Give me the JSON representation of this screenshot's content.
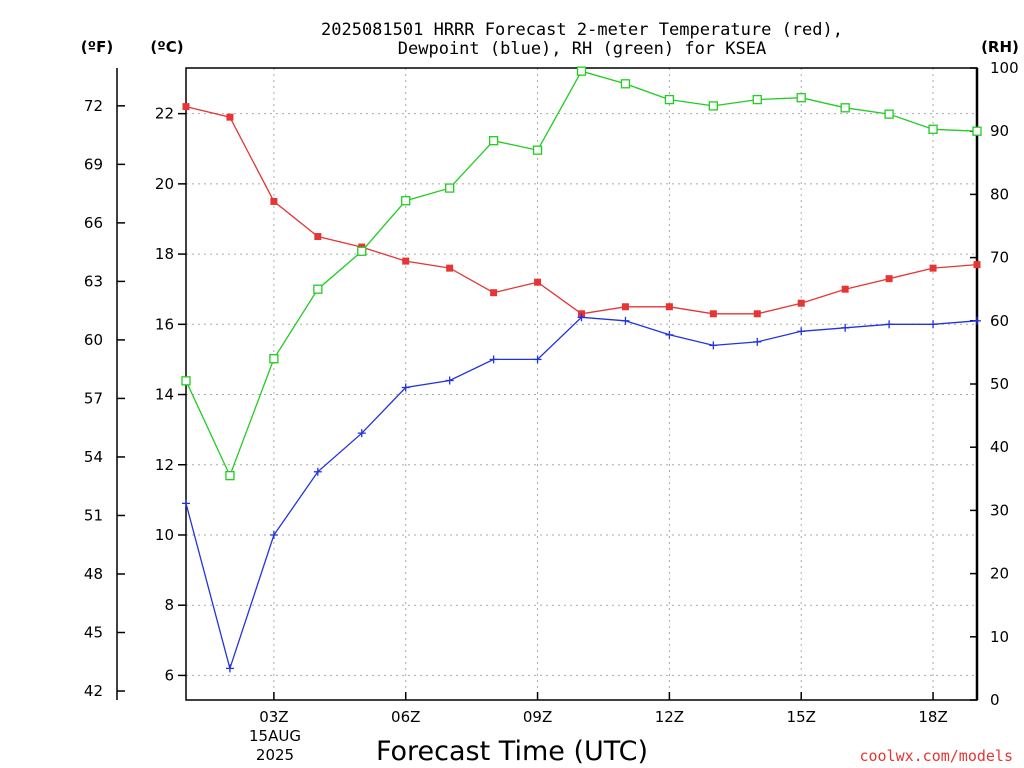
{
  "title_lines": [
    "2025081501 HRRR Forecast 2-meter Temperature (red),",
    "Dewpoint (blue), RH (green) for KSEA"
  ],
  "units": {
    "f": "(ºF)",
    "c": "(ºC)",
    "rh": "(RH)"
  },
  "date_label": {
    "day": "15AUG",
    "year": "2025"
  },
  "credit": "coolwx.com/models",
  "colors": {
    "temperature": "#e53535",
    "dewpoint": "#2233dd",
    "rh": "#22cc22",
    "credit": "#e53535",
    "grid": "#aaaaaa"
  },
  "chart_data": {
    "type": "line",
    "title": "2025081501 HRRR Forecast 2-meter Temperature (red), Dewpoint (blue), RH (green) for KSEA",
    "xlabel": "Forecast Time (UTC)",
    "x": [
      1,
      2,
      3,
      4,
      5,
      6,
      7,
      8,
      9,
      10,
      11,
      12,
      13,
      14,
      15,
      16,
      17,
      18,
      19
    ],
    "xlim": [
      1,
      19
    ],
    "x_ticks": [
      3,
      6,
      9,
      12,
      15,
      18
    ],
    "x_tick_labels": [
      "03Z",
      "06Z",
      "09Z",
      "12Z",
      "15Z",
      "18Z"
    ],
    "left_axis_c": {
      "label": "(ºC)",
      "ylim": [
        5.3,
        23.3
      ],
      "ticks": [
        6,
        8,
        10,
        12,
        14,
        16,
        18,
        20,
        22
      ]
    },
    "left_axis_f": {
      "label": "(ºF)",
      "ticks": [
        42,
        45,
        48,
        51,
        54,
        57,
        60,
        63,
        66,
        69,
        72
      ]
    },
    "right_axis_rh": {
      "label": "(RH)",
      "ylim": [
        0,
        100
      ],
      "ticks": [
        0,
        10,
        20,
        30,
        40,
        50,
        60,
        70,
        80,
        90,
        100
      ]
    },
    "grid": true,
    "series": [
      {
        "key": "temperature",
        "axis": "c",
        "marker": "square-filled",
        "values": [
          22.2,
          21.9,
          19.5,
          18.5,
          18.2,
          17.8,
          17.6,
          16.9,
          17.2,
          16.3,
          16.5,
          16.5,
          16.3,
          16.3,
          16.6,
          17.0,
          17.3,
          17.6,
          17.7
        ]
      },
      {
        "key": "dewpoint",
        "axis": "c",
        "marker": "plus",
        "values": [
          10.9,
          6.2,
          10.0,
          11.8,
          12.9,
          14.2,
          14.4,
          15.0,
          15.0,
          16.2,
          16.1,
          15.7,
          15.4,
          15.5,
          15.8,
          15.9,
          16.0,
          16.0,
          16.1
        ]
      },
      {
        "key": "rh",
        "axis": "rh",
        "marker": "square-open",
        "values": [
          50.5,
          35.5,
          54,
          65,
          71,
          79,
          81,
          88.5,
          87,
          99.5,
          97.5,
          95,
          94,
          95,
          95.3,
          93.7,
          92.7,
          90.3,
          90
        ]
      }
    ]
  }
}
